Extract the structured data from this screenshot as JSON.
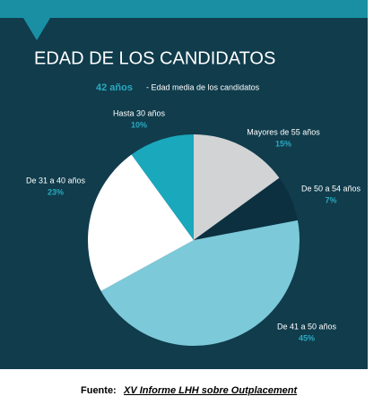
{
  "chart_data": {
    "type": "pie",
    "title": "EDAD DE LOS CANDIDATOS",
    "highlight": "42 años",
    "subtitle": "- Edad media de los candidatos",
    "categories": [
      "Mayores de 55 años",
      "De 50 a 54 años",
      "De 41 a 50 años",
      "De 31 a 40 años",
      "Hasta 30 años"
    ],
    "values": [
      15,
      7,
      45,
      23,
      10
    ],
    "value_labels": [
      "15%",
      "7%",
      "45%",
      "23%",
      "10%"
    ],
    "colors": [
      "#d1d3d4",
      "#0c3040",
      "#7cc9d9",
      "#ffffff",
      "#1aa8bd"
    ],
    "source_label": "Fuente:",
    "source": "XV Informe LHH sobre Outplacement"
  }
}
